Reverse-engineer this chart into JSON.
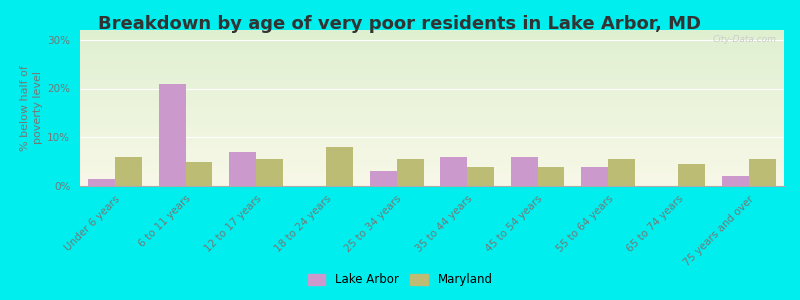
{
  "title": "Breakdown by age of very poor residents in Lake Arbor, MD",
  "ylabel": "% below half of\npoverty level",
  "categories": [
    "Under 6 years",
    "6 to 11 years",
    "12 to 17 years",
    "18 to 24 years",
    "25 to 34 years",
    "35 to 44 years",
    "45 to 54 years",
    "55 to 64 years",
    "65 to 74 years",
    "75 years and over"
  ],
  "lake_arbor": [
    1.5,
    21.0,
    7.0,
    0.0,
    3.0,
    6.0,
    6.0,
    4.0,
    0.0,
    2.0
  ],
  "maryland": [
    6.0,
    5.0,
    5.5,
    8.0,
    5.5,
    4.0,
    4.0,
    5.5,
    4.5,
    5.5
  ],
  "lake_arbor_color": "#cc99cc",
  "maryland_color": "#bcbc74",
  "outer_bg": "#00eeee",
  "ylim": [
    0,
    32
  ],
  "yticks": [
    0,
    10,
    20,
    30
  ],
  "ytick_labels": [
    "0%",
    "10%",
    "20%",
    "30%"
  ],
  "title_fontsize": 13,
  "axis_label_fontsize": 8,
  "tick_fontsize": 7.5,
  "legend_labels": [
    "Lake Arbor",
    "Maryland"
  ],
  "bar_width": 0.38,
  "watermark": "City-Data.com"
}
